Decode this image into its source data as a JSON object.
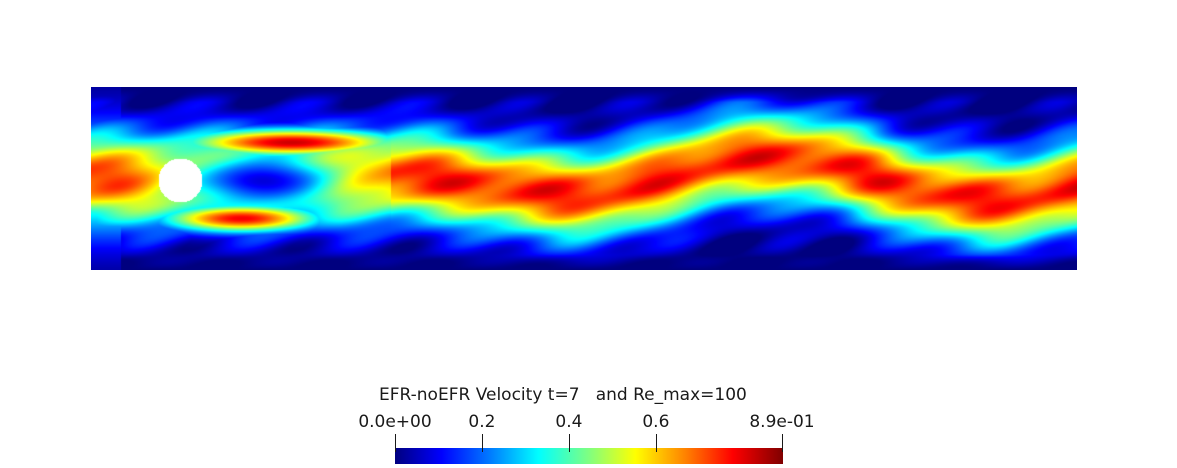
{
  "legend": {
    "title": "EFR-noEFR Velocity t=7   and Re_max=100",
    "ticks": [
      {
        "label": "0.0e+00",
        "value": 0.0
      },
      {
        "label": "0.2",
        "value": 0.2
      },
      {
        "label": "0.4",
        "value": 0.4
      },
      {
        "label": "0.6",
        "value": 0.6
      },
      {
        "label": "8.9e-01",
        "value": 0.89
      }
    ],
    "range": [
      0.0,
      0.89
    ],
    "colormap": "jet"
  },
  "colors": {
    "background": "#ffffff",
    "low": "#00007f",
    "high": "#7f0000"
  },
  "field": {
    "description_type": "flow-past-cylinder velocity magnitude",
    "obstacle": "circle"
  }
}
